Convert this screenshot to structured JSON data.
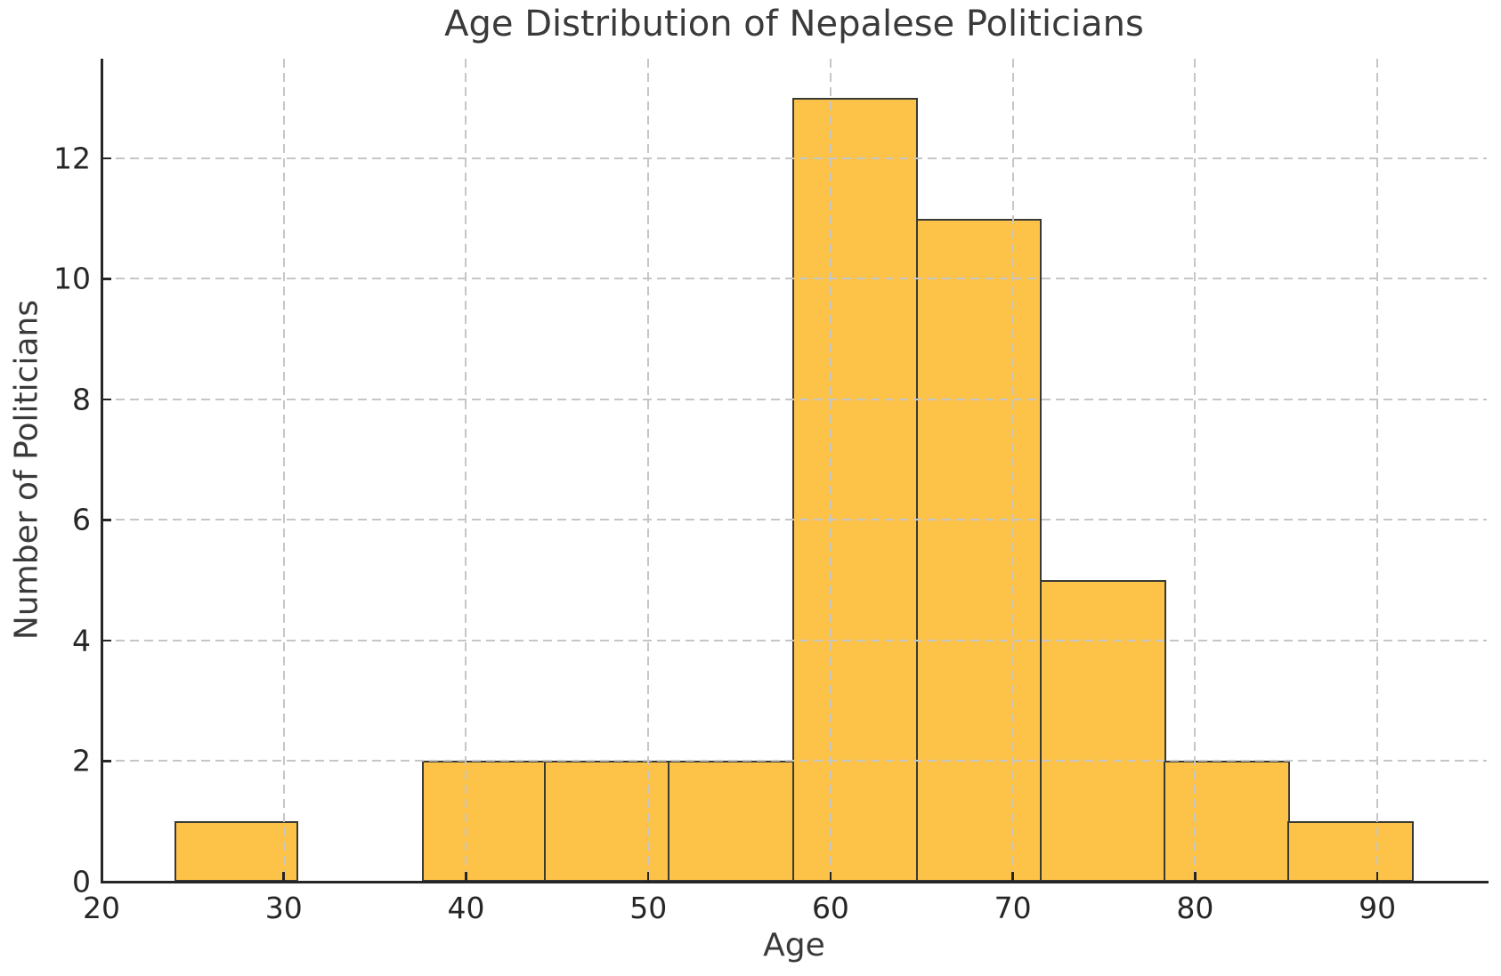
{
  "chart_data": {
    "type": "bar",
    "subtype": "histogram",
    "title": "Age Distribution of Nepalese Politicians",
    "xlabel": "Age",
    "ylabel": "Number of Politicians",
    "bin_edges": [
      24,
      30.8,
      37.6,
      44.4,
      51.2,
      58,
      64.8,
      71.6,
      78.4,
      85.2,
      92
    ],
    "counts": [
      1,
      0,
      2,
      2,
      2,
      13,
      11,
      5,
      2,
      1
    ],
    "xticks": [
      20,
      30,
      40,
      50,
      60,
      70,
      80,
      90
    ],
    "yticks": [
      0,
      2,
      4,
      6,
      8,
      10,
      12
    ],
    "xlim": [
      20,
      96
    ],
    "ylim": [
      0,
      13.65
    ],
    "grid": "dashed, both axes, drawn above bars",
    "legend_position": "none",
    "tick_direction": "in",
    "colors": {
      "bar_fill": "#fdc349",
      "bar_edge": "#3a3a35",
      "grid": "#c6c6c6",
      "spine": "#262626",
      "tick_label": "#262626",
      "text": "#3a3a3a",
      "background": "#ffffff"
    }
  }
}
